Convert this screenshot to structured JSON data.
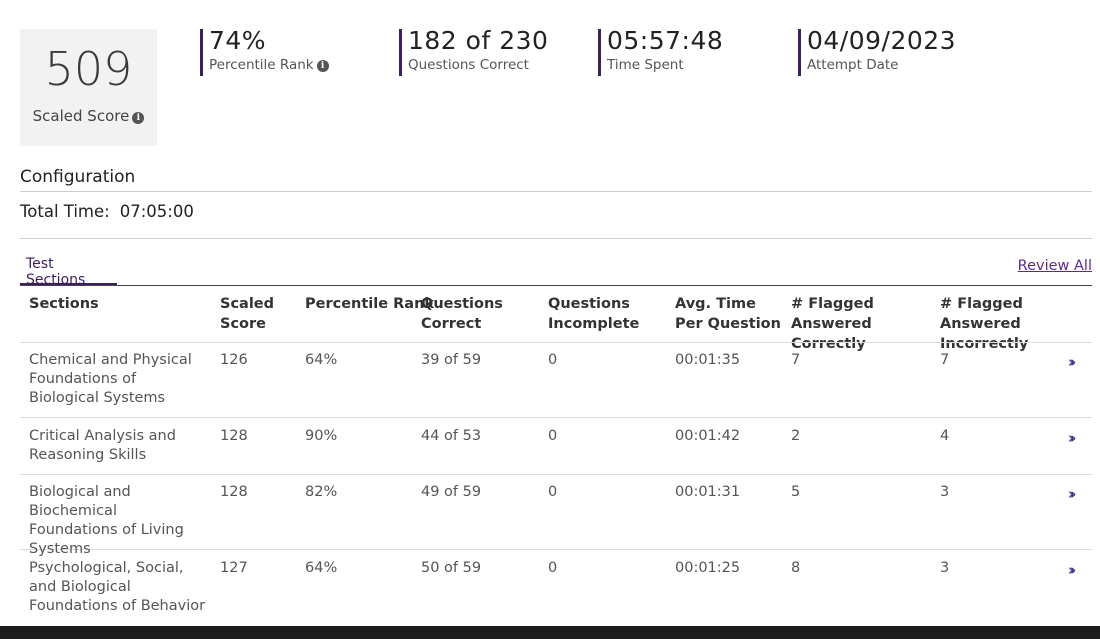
{
  "score": {
    "value": "509",
    "label": "Scaled Score"
  },
  "stats": [
    {
      "value": "74%",
      "label": "Percentile Rank",
      "info": true
    },
    {
      "value": "182 of 230",
      "label": "Questions Correct",
      "info": false
    },
    {
      "value": "05:57:48",
      "label": "Time Spent",
      "info": false
    },
    {
      "value": "04/09/2023",
      "label": "Attempt Date",
      "info": false
    }
  ],
  "config": {
    "title": "Configuration",
    "total_time_label": "Total Time:",
    "total_time_value": "07:05:00"
  },
  "tab": {
    "label": "Test Sections"
  },
  "review_all": "Review All",
  "table": {
    "headers": {
      "sections": "Sections",
      "scaled_score": "Scaled Score",
      "percentile_rank": "Percentile Rank",
      "questions_correct": "Questions Correct",
      "questions_incomplete": "Questions Incomplete",
      "avg_time": "Avg. Time Per Question",
      "flagged_correct": "# Flagged Answered Correctly",
      "flagged_incorrect": "# Flagged Answered Incorrectly"
    },
    "rows": [
      {
        "name": "Chemical and Physical Foundations of Biological Systems",
        "score": "126",
        "percentile": "64%",
        "correct": "39 of 59",
        "incomplete": "0",
        "avg": "00:01:35",
        "flag_c": "7",
        "flag_i": "7"
      },
      {
        "name": "Critical Analysis and Reasoning Skills",
        "score": "128",
        "percentile": "90%",
        "correct": "44 of 53",
        "incomplete": "0",
        "avg": "00:01:42",
        "flag_c": "2",
        "flag_i": "4"
      },
      {
        "name": "Biological and Biochemical Foundations of Living Systems",
        "score": "128",
        "percentile": "82%",
        "correct": "49 of 59",
        "incomplete": "0",
        "avg": "00:01:31",
        "flag_c": "5",
        "flag_i": "3"
      },
      {
        "name": "Psychological, Social, and Biological Foundations of Behavior",
        "score": "127",
        "percentile": "64%",
        "correct": "50 of 59",
        "incomplete": "0",
        "avg": "00:01:25",
        "flag_c": "8",
        "flag_i": "3"
      }
    ]
  },
  "icons": {
    "info": "info-icon",
    "row_action": "double-chevron-right-icon"
  },
  "colors": {
    "accent": "#3d1f5e",
    "link": "#5b2d8a",
    "score_bg": "#f2f2f2"
  }
}
